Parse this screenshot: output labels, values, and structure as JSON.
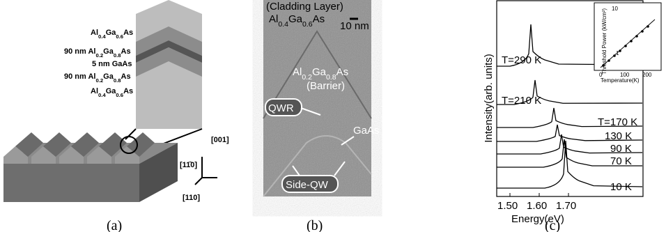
{
  "panel_a": {
    "layers": [
      "Al0.4Ga0.6As",
      "90 nm Al0.2Ga0.8As",
      "5 nm GaAs",
      "90 nm Al0.2Ga0.8As",
      "Al0.4Ga0.6As"
    ],
    "directions": [
      "[001]",
      "[11̄0]",
      "[110]"
    ],
    "caption": "(a)"
  },
  "panel_b": {
    "labels": {
      "cladding": "(Cladding Layer)",
      "cladding_material": "Al0.4Ga0.6As",
      "scale": "10 nm",
      "barrier_material": "Al0.2Ga0.8As",
      "barrier": "(Barrier)",
      "qwr": "QWR",
      "gaas": "GaAs",
      "side_qw": "Side-QW"
    },
    "caption": "(b)"
  },
  "panel_c": {
    "y_label": "Intensity(arb. units)",
    "x_label": "Energy(eV)",
    "x_ticks": [
      "1.50",
      "1.60",
      "1.70"
    ],
    "temperatures": [
      "T=290 K",
      "T=210 K",
      "T=170 K",
      "130 K",
      "90 K",
      "70 K",
      "10 K"
    ],
    "inset": {
      "y_label": "Threshold Power (kW/cm²)",
      "x_label": "Temperature(K)",
      "x_ticks": [
        "0",
        "100",
        "200"
      ],
      "y_ticks": [
        "1",
        "10"
      ]
    },
    "caption": "(c)"
  }
}
